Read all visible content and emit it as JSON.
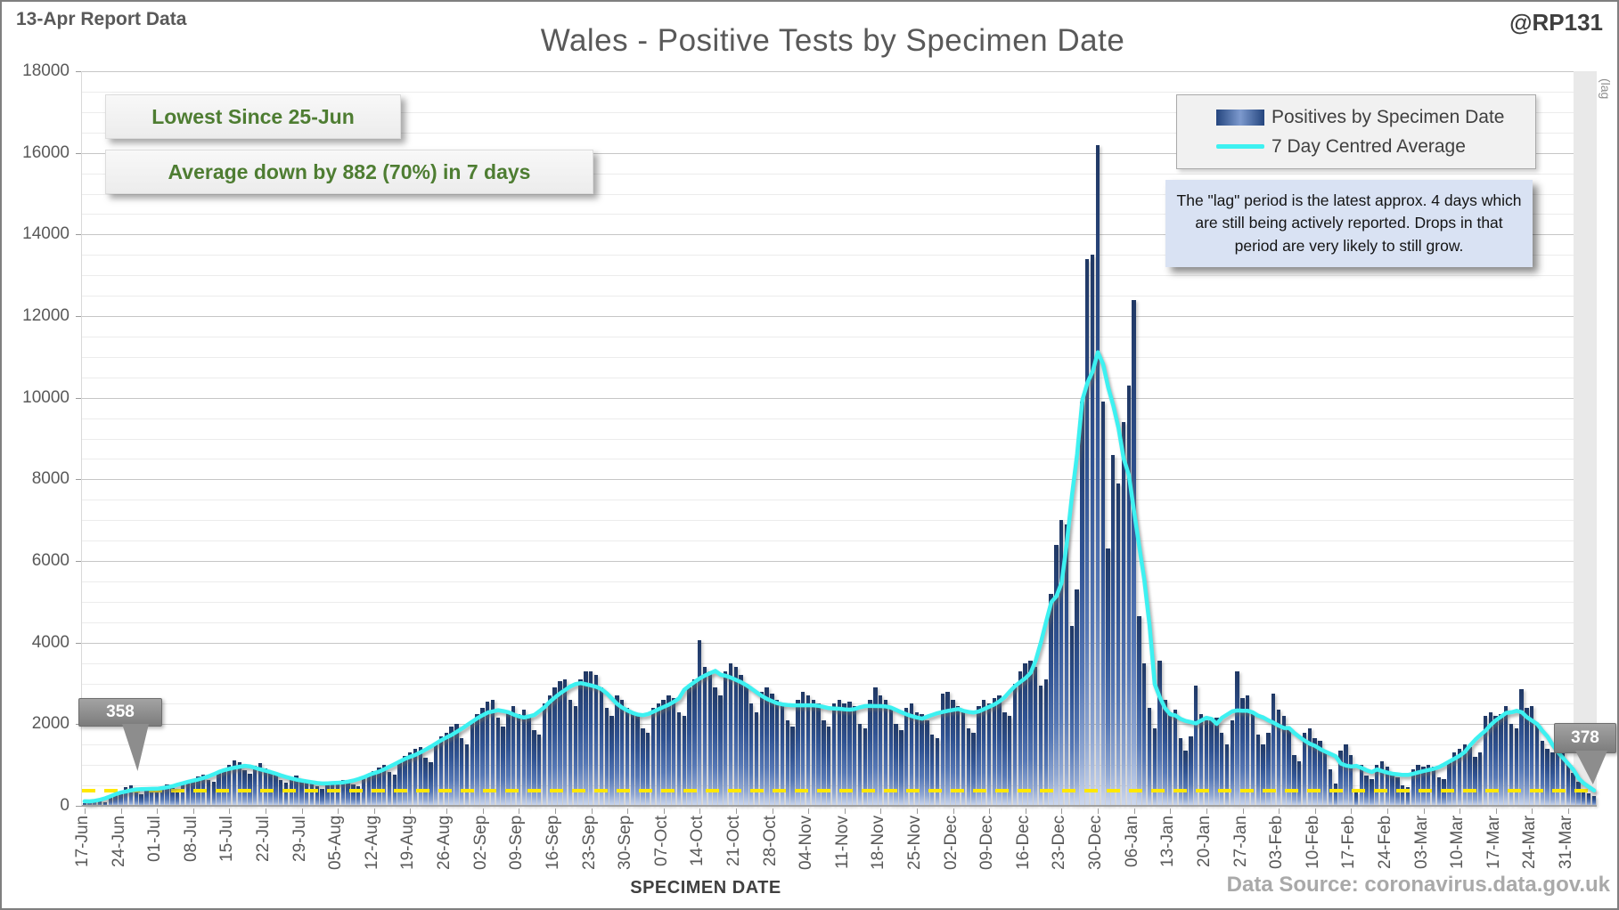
{
  "page": {
    "report_label": "13-Apr Report Data",
    "title": "Wales - Positive Tests by Specimen Date",
    "handle": "@RP131",
    "data_source": "Data Source: coronavirus.data.gov.uk"
  },
  "annotations": {
    "box1": "Lowest Since 25-Jun",
    "box2": "Average down by 882 (70%) in 7 days",
    "lag_note": "The \"lag\" period is the latest approx. 4 days which are still being actively reported.  Drops in that period are very likely to still grow.",
    "callout_start": "358",
    "callout_end": "378",
    "lag_band_label": "(lag"
  },
  "legend": {
    "bar_label": "Positives by Specimen Date",
    "line_label": "7 Day Centred Average"
  },
  "axes": {
    "x_title": "SPECIMEN DATE",
    "y_max": 18000,
    "y_major_step": 2000,
    "y_minor_step": 500,
    "y_ticks": [
      0,
      2000,
      4000,
      6000,
      8000,
      10000,
      12000,
      14000,
      16000,
      18000
    ],
    "x_tick_labels": [
      "17-Jun",
      "24-Jun",
      "01-Jul",
      "08-Jul",
      "15-Jul",
      "22-Jul",
      "29-Jul",
      "05-Aug",
      "12-Aug",
      "19-Aug",
      "26-Aug",
      "02-Sep",
      "09-Sep",
      "16-Sep",
      "23-Sep",
      "30-Sep",
      "07-Oct",
      "14-Oct",
      "21-Oct",
      "28-Oct",
      "04-Nov",
      "11-Nov",
      "18-Nov",
      "25-Nov",
      "02-Dec",
      "09-Dec",
      "16-Dec",
      "23-Dec",
      "30-Dec",
      "06-Jan",
      "13-Jan",
      "20-Jan",
      "27-Jan",
      "03-Feb",
      "10-Feb",
      "17-Feb",
      "24-Feb",
      "03-Mar",
      "10-Mar",
      "17-Mar",
      "24-Mar",
      "31-Mar"
    ]
  },
  "chart_data": {
    "type": "bar",
    "title": "Wales - Positive Tests by Specimen Date",
    "xlabel": "SPECIMEN DATE",
    "ylabel": "",
    "ylim": [
      0,
      18000
    ],
    "grid": "horizontal, minor 500 / major 2000",
    "legend_position": "top-right",
    "start_date": "17-Jun",
    "end_date": "05-Apr",
    "days_per_x_tick": 7,
    "series": [
      {
        "name": "Positives by Specimen Date",
        "type": "bar",
        "note": "approximate daily values read from chart, 17-Jun through 05-Apr",
        "values": [
          75,
          110,
          140,
          120,
          95,
          210,
          290,
          330,
          450,
          500,
          400,
          280,
          410,
          440,
          380,
          480,
          520,
          430,
          380,
          560,
          610,
          650,
          720,
          760,
          640,
          580,
          820,
          900,
          1000,
          1120,
          1060,
          870,
          780,
          980,
          1040,
          920,
          860,
          790,
          640,
          560,
          700,
          740,
          660,
          620,
          570,
          480,
          420,
          560,
          600,
          590,
          640,
          620,
          520,
          480,
          700,
          780,
          860,
          940,
          1000,
          840,
          760,
          1100,
          1220,
          1300,
          1400,
          1450,
          1180,
          1080,
          1550,
          1700,
          1800,
          1950,
          2000,
          1650,
          1500,
          2100,
          2250,
          2400,
          2550,
          2600,
          2150,
          1950,
          2300,
          2450,
          2250,
          2350,
          2200,
          1850,
          1750,
          2500,
          2700,
          2900,
          3050,
          3100,
          2600,
          2450,
          3100,
          3300,
          3300,
          3200,
          2900,
          2400,
          2200,
          2700,
          2600,
          2400,
          2300,
          2250,
          1900,
          1800,
          2400,
          2500,
          2600,
          2700,
          2650,
          2300,
          2200,
          2900,
          3100,
          4050,
          3400,
          3300,
          2900,
          2700,
          3300,
          3500,
          3400,
          3200,
          3000,
          2500,
          2300,
          2800,
          2900,
          2750,
          2600,
          2500,
          2100,
          1950,
          2600,
          2800,
          2700,
          2600,
          2500,
          2100,
          1950,
          2500,
          2600,
          2500,
          2550,
          2450,
          2000,
          1900,
          2600,
          2900,
          2700,
          2600,
          2400,
          2000,
          1850,
          2400,
          2500,
          2300,
          2250,
          2100,
          1750,
          1650,
          2750,
          2800,
          2600,
          2450,
          2300,
          1900,
          1800,
          2450,
          2600,
          2500,
          2650,
          2700,
          2300,
          2200,
          3000,
          3300,
          3500,
          3550,
          3400,
          2950,
          3100,
          5200,
          6400,
          7000,
          6900,
          4400,
          5300,
          9900,
          13400,
          13500,
          16200,
          9900,
          6300,
          8600,
          7900,
          9400,
          10300,
          12400,
          4650,
          3500,
          2400,
          1900,
          3550,
          2600,
          2300,
          2350,
          1650,
          1350,
          1700,
          2950,
          2250,
          2100,
          2150,
          2150,
          1800,
          1500,
          2100,
          3300,
          2650,
          2700,
          2300,
          1750,
          1500,
          1800,
          2750,
          2350,
          2200,
          1900,
          1250,
          1100,
          1800,
          1900,
          1650,
          1600,
          1350,
          900,
          550,
          1350,
          1500,
          1250,
          350,
          1000,
          750,
          650,
          1000,
          1100,
          950,
          800,
          700,
          500,
          450,
          900,
          1000,
          950,
          1000,
          950,
          700,
          650,
          1100,
          1300,
          1400,
          1500,
          1450,
          1200,
          1300,
          2200,
          2300,
          2200,
          2250,
          2450,
          2000,
          1900,
          2850,
          2400,
          2450,
          2000,
          1600,
          1400,
          1300,
          1700,
          1400,
          1000,
          800,
          590,
          390,
          300,
          230
        ]
      },
      {
        "name": "7 Day Centred Average",
        "type": "line",
        "derivation": "7-day centred mean of the bar series (window clipped at the ends)",
        "start_value": 358,
        "end_value": 378,
        "peak_value": 11700
      }
    ],
    "reference_line": {
      "value": 378,
      "style": "yellow dashed horizontal"
    },
    "lag_band": {
      "days": 4,
      "position": "right edge of plot"
    }
  }
}
